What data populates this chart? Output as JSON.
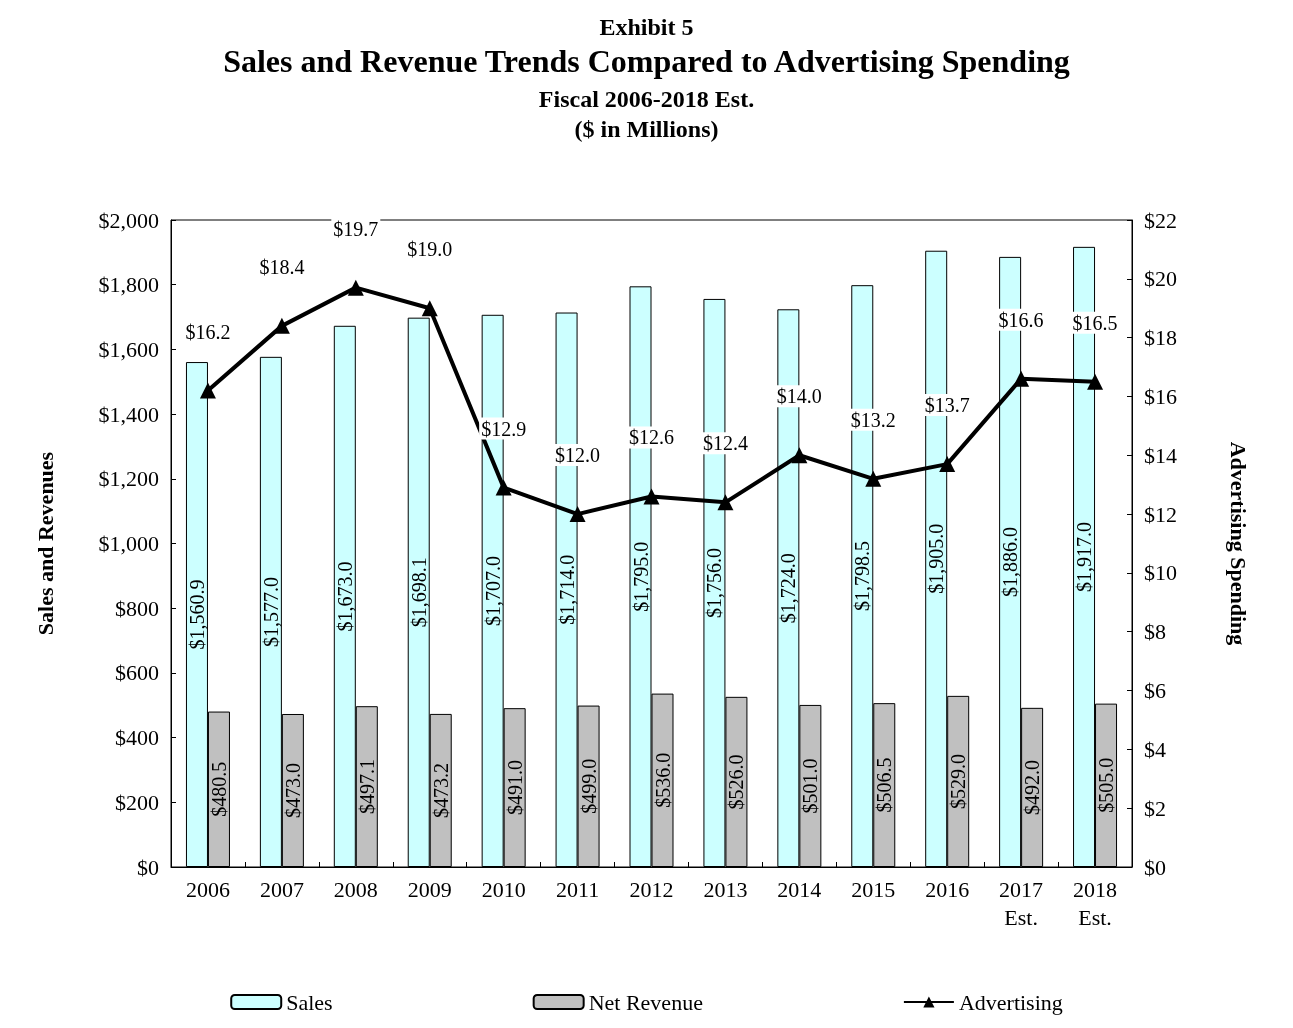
{
  "chart_data": {
    "type": "bar",
    "title": "Exhibit 5",
    "subtitle": "Sales and Revenue Trends Compared to Advertising Spending",
    "annotations": [
      "Fiscal 2006-2018 Est.",
      "($ in Millions)"
    ],
    "ylabel": "Sales and Revenues",
    "y2label": "Advertising Spending",
    "categories": [
      "2006",
      "2007",
      "2008",
      "2009",
      "2010",
      "2011",
      "2012",
      "2013",
      "2014",
      "2015",
      "2016",
      "2017\nEst.",
      "2018\nEst."
    ],
    "series": [
      {
        "name": "Sales",
        "color": "#ccffff",
        "values": [
          1560.9,
          1577.0,
          1673.0,
          1698.1,
          1707.0,
          1714.0,
          1795.0,
          1756.0,
          1724.0,
          1798.5,
          1905.0,
          1886.0,
          1917.0
        ],
        "value_labels": [
          "$1,560.9",
          "$1,577.0",
          "$1,673.0",
          "$1,698.1",
          "$1,707.0",
          "$1,714.0",
          "$1,795.0",
          "$1,756.0",
          "$1,724.0",
          "$1,798.5",
          "$1,905.0",
          "$1,886.0",
          "$1,917.0"
        ]
      },
      {
        "name": "Net Revenue",
        "color": "#c0c0c0",
        "values": [
          480.5,
          473.0,
          497.1,
          473.2,
          491.0,
          499.0,
          536.0,
          526.0,
          501.0,
          506.5,
          529.0,
          492.0,
          505.0
        ],
        "value_labels": [
          "$480.5",
          "$473.0",
          "$497.1",
          "$473.2",
          "$491.0",
          "$499.0",
          "$536.0",
          "$526.0",
          "$501.0",
          "$506.5",
          "$529.0",
          "$492.0",
          "$505.0"
        ]
      },
      {
        "name": "Advertising",
        "type": "line",
        "axis": "y2",
        "color": "#000000",
        "marker": "triangle",
        "values": [
          16.2,
          18.4,
          19.7,
          19.0,
          12.9,
          12.0,
          12.6,
          12.4,
          14.0,
          13.2,
          13.7,
          16.6,
          16.5
        ],
        "value_labels": [
          "$16.2",
          "$18.4",
          "$19.7",
          "$19.0",
          "$12.9",
          "$12.0",
          "$12.6",
          "$12.4",
          "$14.0",
          "$13.2",
          "$13.7",
          "$16.6",
          "$16.5"
        ]
      }
    ],
    "ylim": [
      0,
      2000
    ],
    "yticks": [
      {
        "value": 0,
        "label": "$0"
      },
      {
        "value": 200,
        "label": "$200"
      },
      {
        "value": 400,
        "label": "$400"
      },
      {
        "value": 600,
        "label": "$600"
      },
      {
        "value": 800,
        "label": "$800"
      },
      {
        "value": 1000,
        "label": "$1,000"
      },
      {
        "value": 1200,
        "label": "$1,200"
      },
      {
        "value": 1400,
        "label": "$1,400"
      },
      {
        "value": 1600,
        "label": "$1,600"
      },
      {
        "value": 1800,
        "label": "$1,800"
      },
      {
        "value": 2000,
        "label": "$2,000"
      }
    ],
    "y2lim": [
      0,
      22
    ],
    "y2ticks": [
      {
        "value": 0,
        "label": "$0"
      },
      {
        "value": 2,
        "label": "$2"
      },
      {
        "value": 4,
        "label": "$4"
      },
      {
        "value": 6,
        "label": "$6"
      },
      {
        "value": 8,
        "label": "$8"
      },
      {
        "value": 10,
        "label": "$10"
      },
      {
        "value": 12,
        "label": "$12"
      },
      {
        "value": 14,
        "label": "$14"
      },
      {
        "value": 16,
        "label": "$16"
      },
      {
        "value": 18,
        "label": "$18"
      },
      {
        "value": 20,
        "label": "$20"
      },
      {
        "value": 22,
        "label": "$22"
      }
    ],
    "legend": "bottom"
  }
}
